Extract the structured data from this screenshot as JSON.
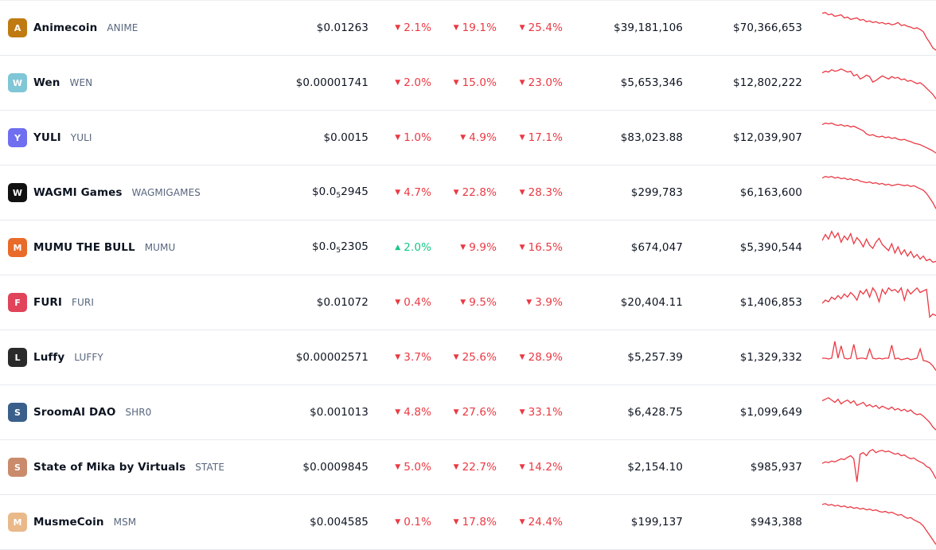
{
  "colors": {
    "down": "#ea3943",
    "up": "#16c784",
    "text": "#0d1421",
    "muted": "#58667e"
  },
  "rows": [
    {
      "name": "Animecoin",
      "symbol": "ANIME",
      "logo_icon": "animecoin-logo-icon",
      "logo_color": "#c07a12",
      "logo_char": "A",
      "price": "$0.01263",
      "h1": "2.1%",
      "h1_dir": "down",
      "h24": "19.1%",
      "h24_dir": "down",
      "d7": "25.4%",
      "d7_dir": "down",
      "volume": "$39,181,106",
      "market_cap": "$70,366,653",
      "spark": [
        10,
        9,
        12,
        11,
        14,
        13,
        12,
        16,
        15,
        18,
        17,
        16,
        19,
        18,
        21,
        20,
        22,
        21,
        23,
        22,
        24,
        23,
        25,
        24,
        22,
        26,
        25,
        27,
        28,
        30,
        29,
        31,
        34,
        42,
        48,
        55,
        58
      ]
    },
    {
      "name": "Wen",
      "symbol": "WEN",
      "logo_icon": "wen-logo-icon",
      "logo_color": "#7fc6d6",
      "logo_char": "W",
      "price": "$0.00001741",
      "h1": "2.0%",
      "h1_dir": "down",
      "h24": "15.0%",
      "h24_dir": "down",
      "d7": "23.0%",
      "d7_dir": "down",
      "volume": "$5,653,346",
      "market_cap": "$12,802,222",
      "spark": [
        16,
        14,
        15,
        12,
        14,
        13,
        11,
        13,
        15,
        14,
        20,
        18,
        24,
        22,
        19,
        21,
        28,
        26,
        23,
        20,
        22,
        24,
        21,
        23,
        22,
        25,
        24,
        27,
        26,
        28,
        30,
        29,
        32,
        36,
        40,
        44,
        50
      ]
    },
    {
      "name": "YULI",
      "symbol": "YULI",
      "logo_icon": "yuli-logo-icon",
      "logo_color": "#6f6ff0",
      "logo_char": "Y",
      "price": "$0.0015",
      "h1": "1.0%",
      "h1_dir": "down",
      "h24": "4.9%",
      "h24_dir": "down",
      "d7": "17.1%",
      "d7_dir": "down",
      "volume": "$83,023.88",
      "market_cap": "$12,039,907",
      "spark": [
        12,
        10,
        11,
        10,
        12,
        13,
        12,
        14,
        13,
        15,
        14,
        16,
        18,
        20,
        24,
        26,
        25,
        27,
        28,
        27,
        29,
        28,
        30,
        29,
        31,
        32,
        31,
        33,
        34,
        36,
        37,
        38,
        40,
        42,
        44,
        46,
        49
      ]
    },
    {
      "name": "WAGMI Games",
      "symbol": "WAGMIGAMES",
      "logo_icon": "wagmi-logo-icon",
      "logo_color": "#111111",
      "logo_char": "W",
      "price_prefix": "$0.0",
      "price_sub": "5",
      "price_suffix": "2945",
      "h1": "4.7%",
      "h1_dir": "down",
      "h24": "22.8%",
      "h24_dir": "down",
      "d7": "28.3%",
      "d7_dir": "down",
      "volume": "$299,783",
      "market_cap": "$6,163,600",
      "spark": [
        10,
        8,
        9,
        8,
        10,
        9,
        11,
        10,
        12,
        11,
        13,
        12,
        14,
        15,
        16,
        15,
        17,
        16,
        18,
        17,
        19,
        18,
        20,
        19,
        18,
        19,
        20,
        19,
        21,
        20,
        22,
        24,
        26,
        30,
        36,
        42,
        50
      ]
    },
    {
      "name": "MUMU THE BULL",
      "symbol": "MUMU",
      "logo_icon": "mumu-logo-icon",
      "logo_color": "#e86b2a",
      "logo_char": "M",
      "price_prefix": "$0.0",
      "price_sub": "5",
      "price_suffix": "2305",
      "h1": "2.0%",
      "h1_dir": "up",
      "h24": "9.9%",
      "h24_dir": "down",
      "d7": "16.5%",
      "d7_dir": "down",
      "volume": "$674,047",
      "market_cap": "$5,390,544",
      "spark": [
        20,
        12,
        18,
        8,
        16,
        10,
        22,
        14,
        19,
        11,
        24,
        16,
        21,
        28,
        18,
        26,
        30,
        22,
        17,
        25,
        29,
        33,
        24,
        36,
        28,
        38,
        32,
        40,
        34,
        42,
        38,
        44,
        40,
        46,
        44,
        48,
        47
      ]
    },
    {
      "name": "FURI",
      "symbol": "FURI",
      "logo_icon": "furi-logo-icon",
      "logo_color": "#e0435a",
      "logo_char": "F",
      "price": "$0.01072",
      "h1": "0.4%",
      "h1_dir": "down",
      "h24": "9.5%",
      "h24_dir": "down",
      "d7": "3.9%",
      "d7_dir": "down",
      "volume": "$20,404.11",
      "market_cap": "$1,406,853",
      "spark": [
        30,
        26,
        28,
        22,
        25,
        20,
        24,
        18,
        22,
        16,
        20,
        26,
        14,
        18,
        12,
        22,
        10,
        16,
        28,
        12,
        18,
        10,
        14,
        12,
        16,
        10,
        26,
        12,
        18,
        14,
        10,
        16,
        14,
        12,
        48,
        44,
        46
      ]
    },
    {
      "name": "Luffy",
      "symbol": "LUFFY",
      "logo_icon": "luffy-logo-icon",
      "logo_color": "#2a2a2a",
      "logo_char": "L",
      "price": "$0.00002571",
      "h1": "3.7%",
      "h1_dir": "down",
      "h24": "25.6%",
      "h24_dir": "down",
      "d7": "28.9%",
      "d7_dir": "down",
      "volume": "$5,257.39",
      "market_cap": "$1,329,332",
      "spark": [
        30,
        30,
        31,
        30,
        8,
        30,
        14,
        30,
        31,
        30,
        12,
        31,
        30,
        30,
        31,
        18,
        30,
        31,
        30,
        31,
        30,
        30,
        13,
        31,
        30,
        32,
        31,
        30,
        32,
        31,
        30,
        18,
        33,
        34,
        36,
        40,
        46
      ]
    },
    {
      "name": "SroomAI DAO",
      "symbol": "SHR0",
      "logo_icon": "sroomai-logo-icon",
      "logo_color": "#3a5f8a",
      "logo_char": "S",
      "price": "$0.001013",
      "h1": "4.8%",
      "h1_dir": "down",
      "h24": "27.6%",
      "h24_dir": "down",
      "d7": "33.1%",
      "d7_dir": "down",
      "volume": "$6,428.75",
      "market_cap": "$1,099,649",
      "spark": [
        14,
        12,
        10,
        13,
        16,
        12,
        18,
        15,
        13,
        17,
        14,
        20,
        18,
        16,
        21,
        19,
        22,
        20,
        24,
        21,
        23,
        25,
        22,
        26,
        24,
        27,
        25,
        28,
        26,
        30,
        32,
        31,
        34,
        38,
        42,
        48,
        52
      ]
    },
    {
      "name": "State of Mika by Virtuals",
      "symbol": "STATE",
      "logo_icon": "state-mika-logo-icon",
      "logo_color": "#c98b6b",
      "logo_char": "S",
      "price": "$0.0009845",
      "h1": "5.0%",
      "h1_dir": "down",
      "h24": "22.7%",
      "h24_dir": "down",
      "d7": "14.2%",
      "d7_dir": "down",
      "volume": "$2,154.10",
      "market_cap": "$985,937",
      "spark": [
        24,
        22,
        23,
        21,
        22,
        20,
        18,
        19,
        16,
        14,
        18,
        48,
        12,
        10,
        14,
        8,
        6,
        10,
        8,
        7,
        9,
        8,
        10,
        12,
        11,
        14,
        13,
        16,
        18,
        17,
        20,
        22,
        24,
        28,
        30,
        36,
        44
      ]
    },
    {
      "name": "MusmeCoin",
      "symbol": "MSM",
      "logo_icon": "musme-logo-icon",
      "logo_color": "#e9b98a",
      "logo_char": "M",
      "price": "$0.004585",
      "h1": "0.1%",
      "h1_dir": "down",
      "h24": "17.8%",
      "h24_dir": "down",
      "d7": "24.4%",
      "d7_dir": "down",
      "volume": "$199,137",
      "market_cap": "$943,388",
      "spark": [
        6,
        5,
        7,
        6,
        8,
        7,
        9,
        8,
        10,
        9,
        11,
        10,
        12,
        11,
        13,
        12,
        14,
        13,
        15,
        16,
        15,
        17,
        16,
        18,
        20,
        19,
        22,
        24,
        23,
        26,
        28,
        30,
        34,
        40,
        46,
        52,
        58
      ]
    }
  ]
}
